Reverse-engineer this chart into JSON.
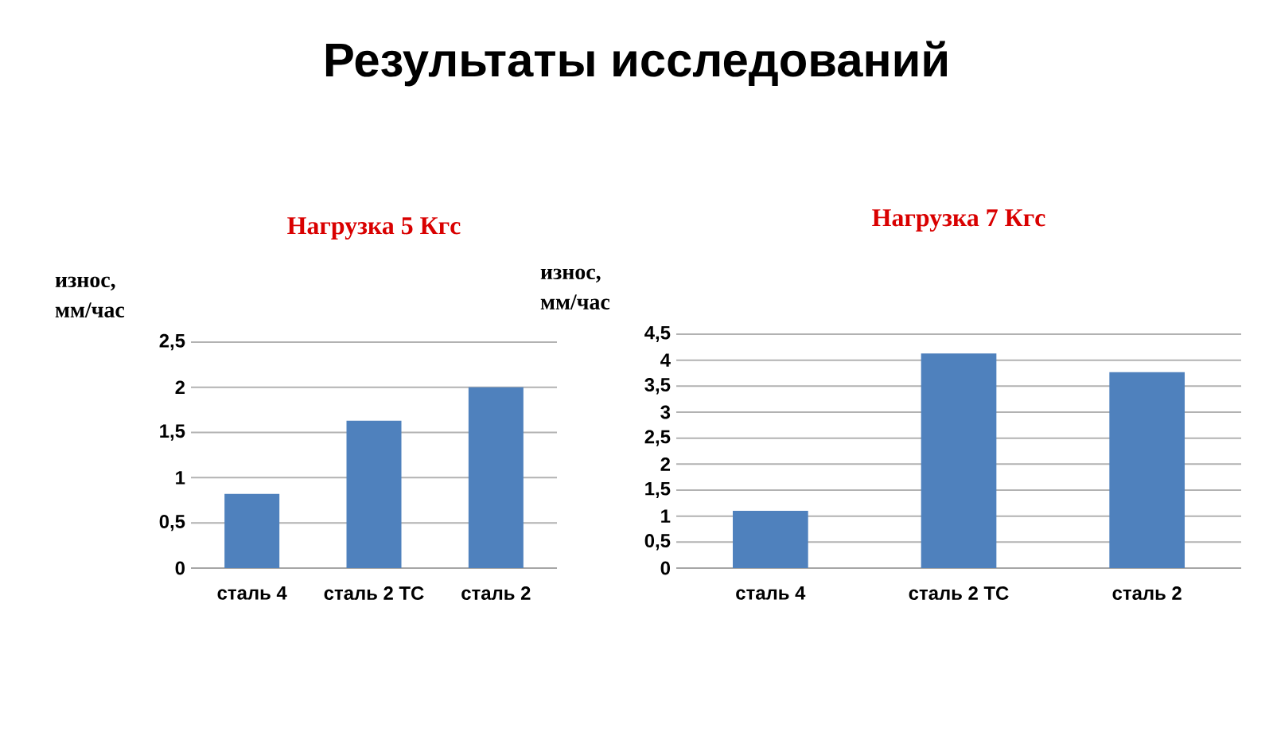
{
  "chart_data": [
    {
      "type": "bar",
      "title": "Результаты исследований",
      "subtitle": "Нагрузка 5  Кгс",
      "ylabel": "износ, мм/час",
      "categories": [
        "сталь 4",
        "сталь 2 ТС",
        "сталь 2"
      ],
      "values": [
        0.82,
        1.63,
        2.0
      ],
      "color": "#4f81bd",
      "ylim": [
        0,
        2.5
      ],
      "yticks": [
        0,
        {
          "value": 0.5,
          "label": "0,5"
        },
        1,
        {
          "value": 1.5,
          "label": "1,5"
        },
        2,
        {
          "value": 2.5,
          "label": "2,5"
        }
      ],
      "grid": "y"
    },
    {
      "type": "bar",
      "subtitle": "Нагрузка 7  Кгс",
      "ylabel": "износ, мм/час",
      "categories": [
        "сталь 4",
        "сталь 2 ТС",
        "сталь 2"
      ],
      "values": [
        1.1,
        4.13,
        3.77
      ],
      "color": "#4f81bd",
      "ylim": [
        0,
        4.5
      ],
      "yticks": [
        0,
        {
          "value": 0.5,
          "label": "0,5"
        },
        1,
        {
          "value": 1.5,
          "label": "1,5"
        },
        2,
        {
          "value": 2.5,
          "label": "2,5"
        },
        3,
        {
          "value": 3.5,
          "label": "3,5"
        },
        4,
        {
          "value": 4.5,
          "label": "4,5"
        }
      ],
      "grid": "y"
    }
  ]
}
